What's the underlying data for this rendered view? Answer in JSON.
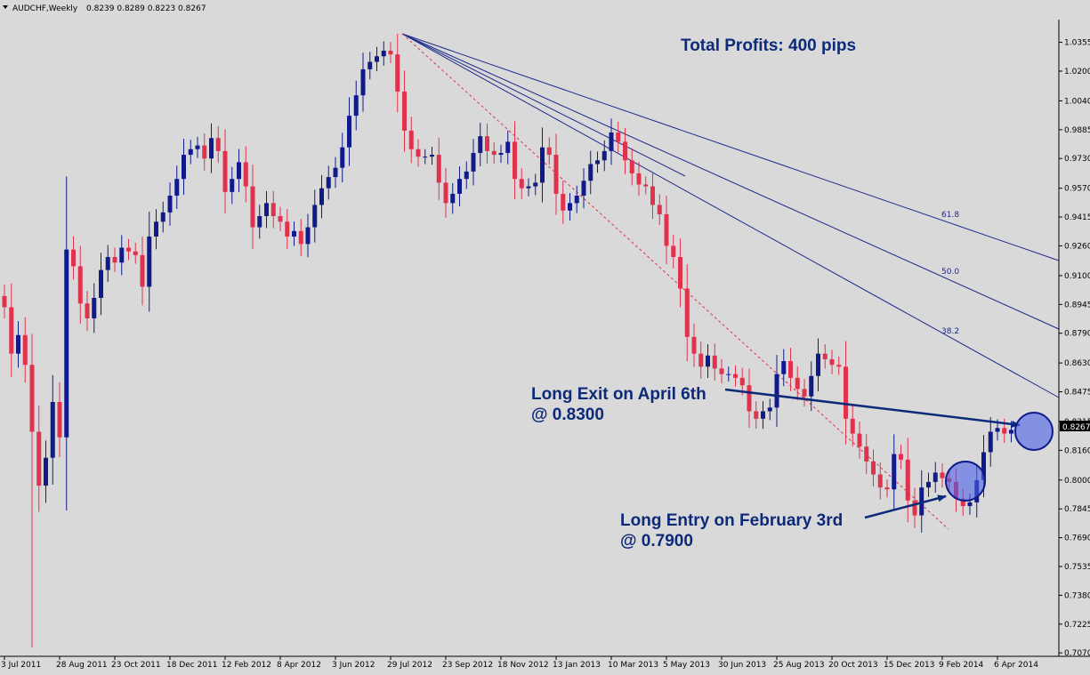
{
  "header": {
    "symbol": "AUDCHF,Weekly",
    "ohlc": "0.8239 0.8289 0.8223 0.8267"
  },
  "colors": {
    "bull": "#101a8a",
    "bear": "#e0314d",
    "line": "#1b2a8c",
    "background": "#d9d9d9"
  },
  "chart_data": {
    "type": "candlestick",
    "title": "AUDCHF,Weekly",
    "ylim": [
      0.709,
      1.042
    ],
    "y_ticks": [
      "1.0355",
      "1.0200",
      "1.0040",
      "0.9885",
      "0.9730",
      "0.9570",
      "0.9415",
      "0.9260",
      "0.9100",
      "0.8945",
      "0.8790",
      "0.8630",
      "0.8475",
      "0.8315",
      "0.8160",
      "0.8000",
      "0.7845",
      "0.7690",
      "0.7535",
      "0.7380",
      "0.7225",
      "0.7070"
    ],
    "x_ticks": [
      {
        "i": 0,
        "label": "3 Jul 2011"
      },
      {
        "i": 8,
        "label": "28 Aug 2011"
      },
      {
        "i": 16,
        "label": "23 Oct 2011"
      },
      {
        "i": 24,
        "label": "18 Dec 2011"
      },
      {
        "i": 32,
        "label": "12 Feb 2012"
      },
      {
        "i": 40,
        "label": "8 Apr 2012"
      },
      {
        "i": 48,
        "label": "3 Jun 2012"
      },
      {
        "i": 56,
        "label": "29 Jul 2012"
      },
      {
        "i": 64,
        "label": "23 Sep 2012"
      },
      {
        "i": 72,
        "label": "18 Nov 2012"
      },
      {
        "i": 80,
        "label": "13 Jan 2013"
      },
      {
        "i": 88,
        "label": "10 Mar 2013"
      },
      {
        "i": 96,
        "label": "5 May 2013"
      },
      {
        "i": 104,
        "label": "30 Jun 2013"
      },
      {
        "i": 112,
        "label": "25 Aug 2013"
      },
      {
        "i": 120,
        "label": "20 Oct 2013"
      },
      {
        "i": 128,
        "label": "15 Dec 2013"
      },
      {
        "i": 136,
        "label": "9 Feb 2014"
      },
      {
        "i": 144,
        "label": "6 Apr 2014"
      }
    ],
    "current_price": "0.8267",
    "closes": [
      0.893,
      0.868,
      0.878,
      0.862,
      0.826,
      0.797,
      0.812,
      0.842,
      0.823,
      0.924,
      0.915,
      0.895,
      0.887,
      0.898,
      0.913,
      0.92,
      0.917,
      0.925,
      0.923,
      0.921,
      0.904,
      0.931,
      0.939,
      0.944,
      0.953,
      0.962,
      0.975,
      0.978,
      0.98,
      0.973,
      0.984,
      0.977,
      0.955,
      0.962,
      0.971,
      0.958,
      0.936,
      0.942,
      0.949,
      0.942,
      0.939,
      0.931,
      0.934,
      0.927,
      0.936,
      0.948,
      0.957,
      0.963,
      0.968,
      0.979,
      0.996,
      1.007,
      1.021,
      1.025,
      1.028,
      1.031,
      1.029,
      1.009,
      0.988,
      0.978,
      0.974,
      0.974,
      0.975,
      0.96,
      0.949,
      0.954,
      0.962,
      0.966,
      0.976,
      0.985,
      0.977,
      0.975,
      0.976,
      0.982,
      0.962,
      0.957,
      0.958,
      0.96,
      0.979,
      0.975,
      0.954,
      0.945,
      0.949,
      0.953,
      0.961,
      0.97,
      0.972,
      0.977,
      0.987,
      0.982,
      0.972,
      0.965,
      0.959,
      0.958,
      0.948,
      0.943,
      0.926,
      0.92,
      0.903,
      0.877,
      0.868,
      0.861,
      0.867,
      0.86,
      0.857,
      0.857,
      0.855,
      0.851,
      0.837,
      0.833,
      0.837,
      0.839,
      0.857,
      0.864,
      0.855,
      0.849,
      0.845,
      0.856,
      0.868,
      0.865,
      0.862,
      0.861,
      0.833,
      0.825,
      0.818,
      0.81,
      0.803,
      0.796,
      0.795,
      0.814,
      0.811,
      0.789,
      0.781,
      0.796,
      0.799,
      0.804,
      0.801,
      0.799,
      0.79,
      0.786,
      0.788,
      0.8,
      0.815,
      0.826,
      0.828,
      0.825,
      0.827
    ]
  },
  "fib_labels": [
    "61.8",
    "50.0",
    "38.2"
  ],
  "annotations": {
    "total_profits": "Total Profits: 400 pips",
    "exit_line1": "Long Exit on April 6th",
    "exit_line2": "@ 0.8300",
    "entry_line1": "Long Entry on February 3rd",
    "entry_line2": "@ 0.7900"
  }
}
